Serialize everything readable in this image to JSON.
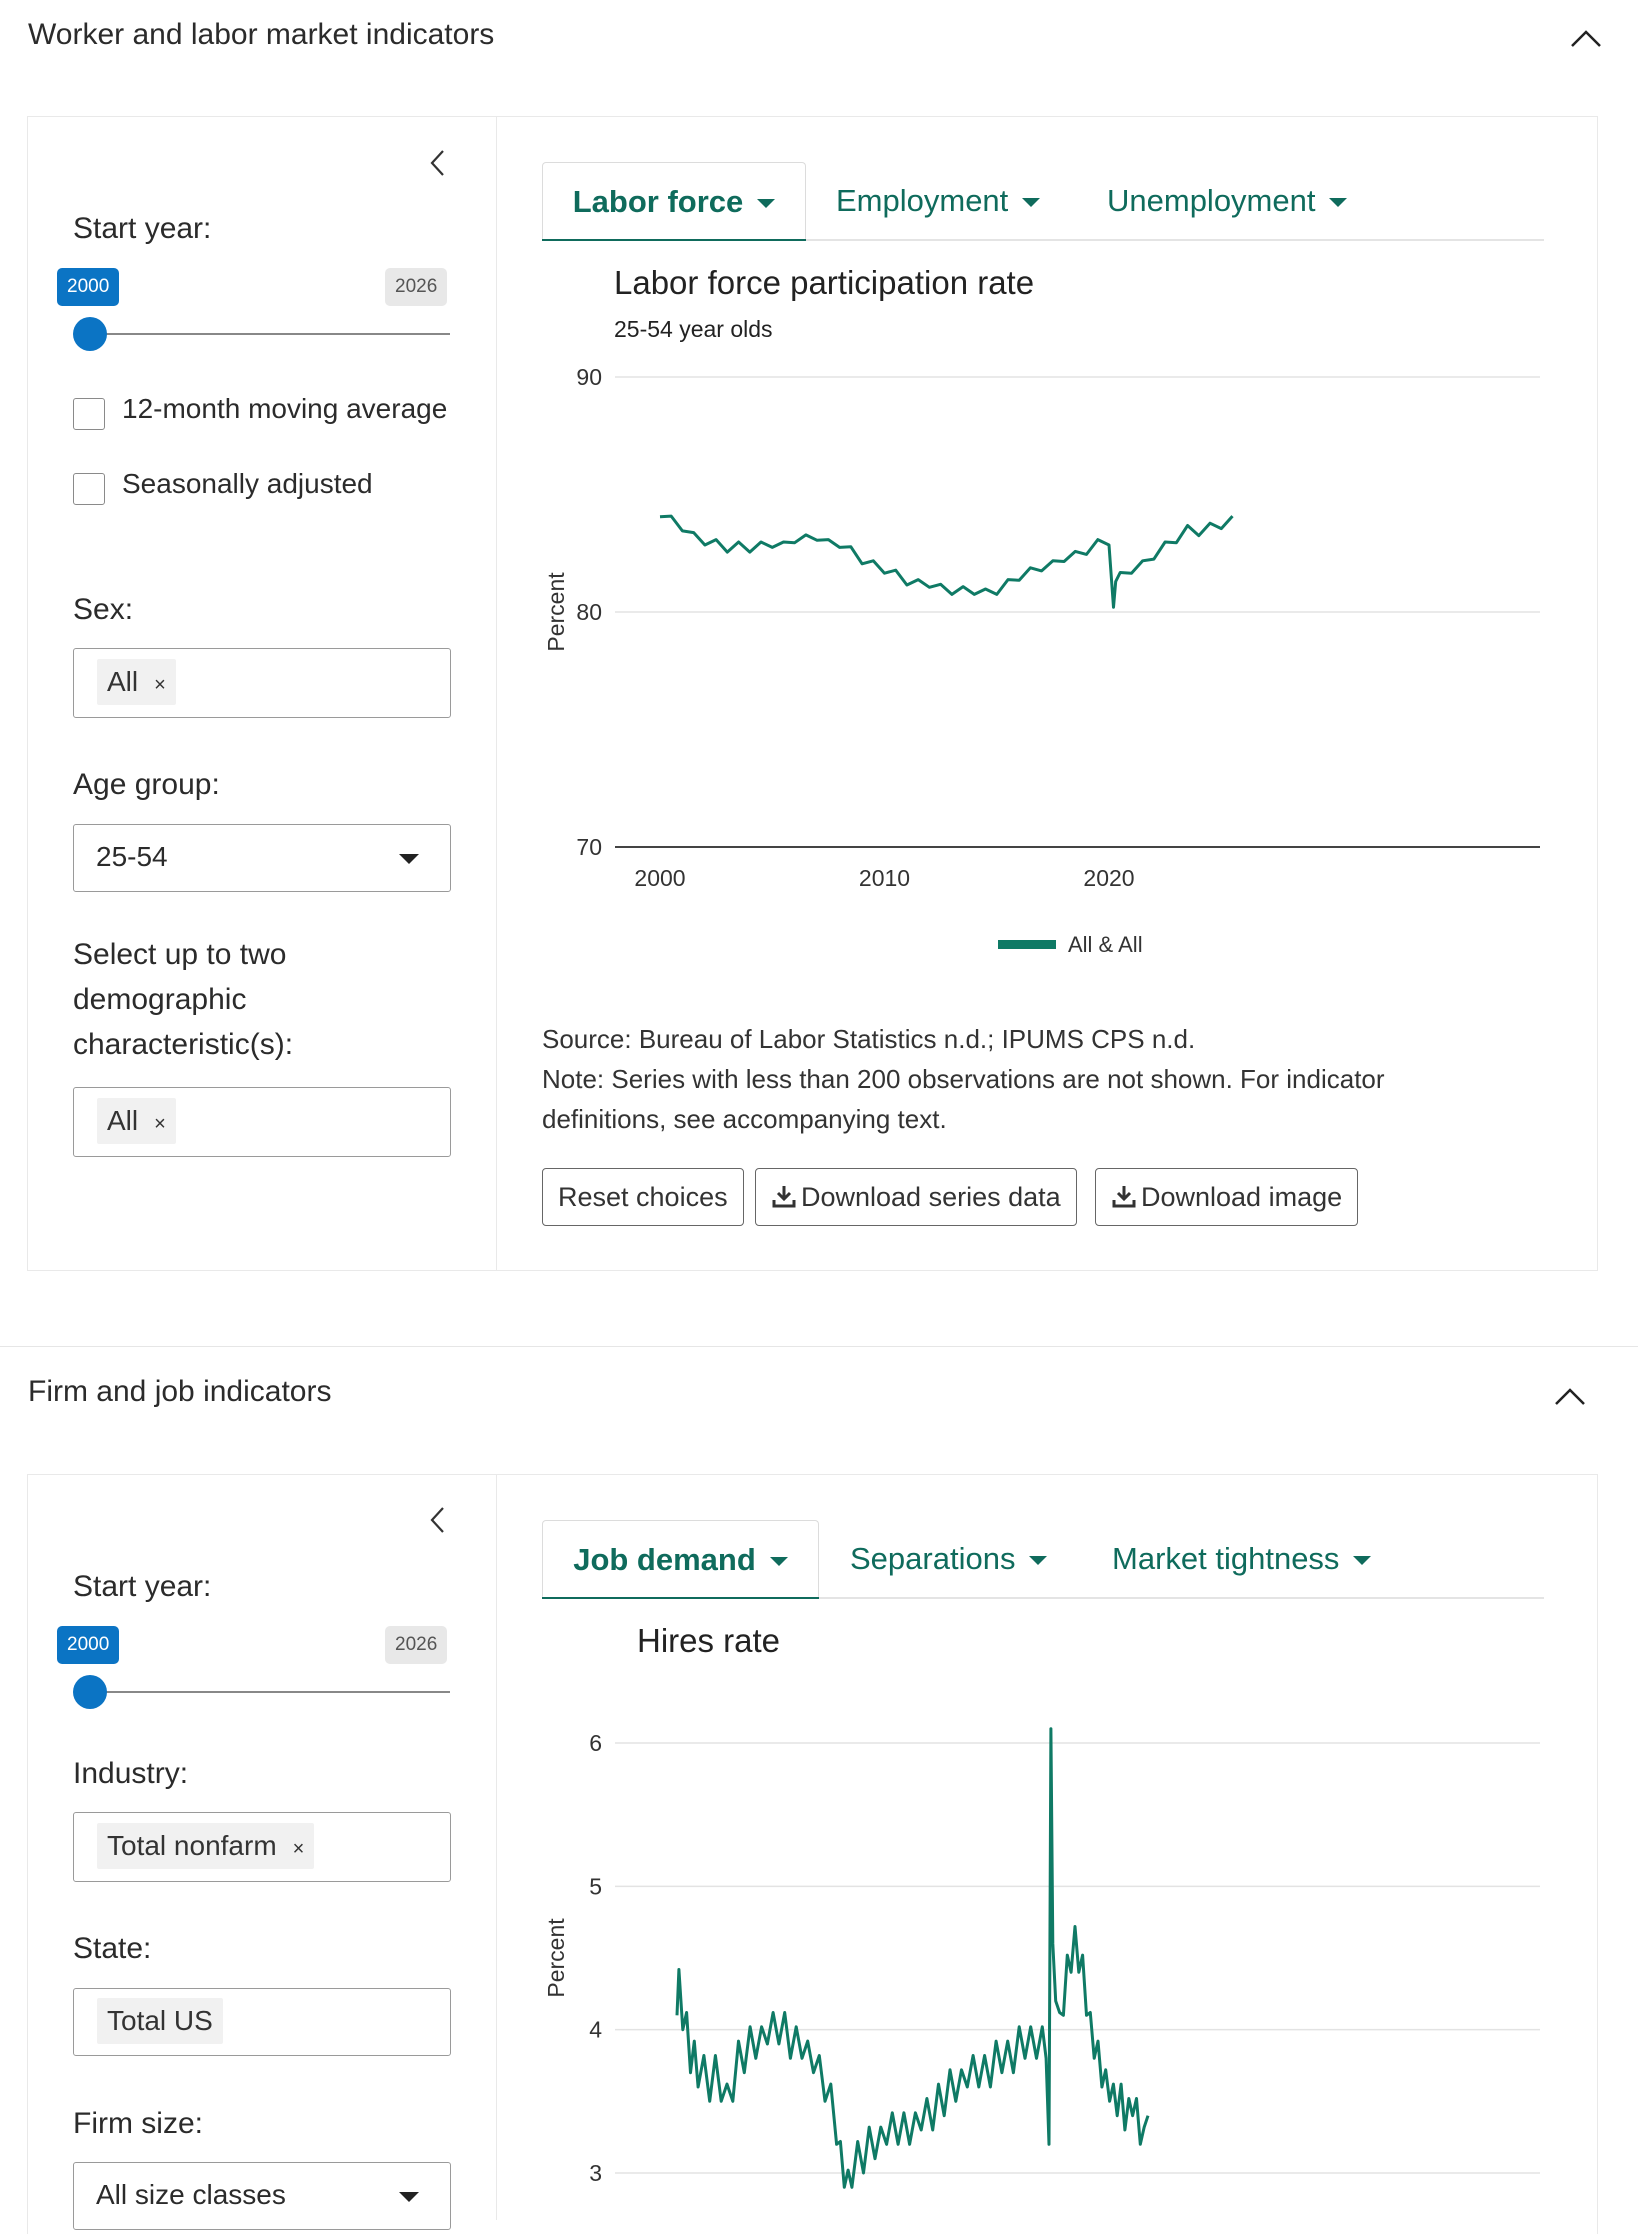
{
  "section1": {
    "title": "Worker and labor market indicators",
    "sidebar": {
      "start_year_label": "Start year:",
      "start_year_value": "2000",
      "end_year_value": "2026",
      "moving_avg_label": "12-month moving average",
      "moving_avg_checked": false,
      "seasonal_label": "Seasonally adjusted",
      "seasonal_checked": false,
      "sex_label": "Sex:",
      "sex_chip": "All",
      "chip_remove": "×",
      "age_label": "Age group:",
      "age_value": "25-54",
      "demo_label_1": "Select up to two",
      "demo_label_2": "demographic",
      "demo_label_3": "characteristic(s):",
      "demo_chip": "All"
    },
    "tabs": [
      "Labor force",
      "Employment",
      "Unemployment"
    ],
    "active_tab": "Labor force",
    "chart": {
      "title": "Labor force participation rate",
      "subtitle": "25-54 year olds",
      "ylabel": "Percent",
      "yticks": [
        "90",
        "80",
        "70"
      ],
      "xticks": [
        "2000",
        "2010",
        "2020"
      ],
      "legend": "All & All"
    },
    "source": "Source: Bureau of Labor Statistics n.d.; IPUMS CPS n.d.",
    "note_line1": "Note: Series with less than 200 observations are not shown. For indicator",
    "note_line2": "definitions, see accompanying text.",
    "buttons": {
      "reset": "Reset choices",
      "download_data": "Download series data",
      "download_image": "Download image"
    }
  },
  "section2": {
    "title": "Firm and job indicators",
    "sidebar": {
      "start_year_label": "Start year:",
      "start_year_value": "2000",
      "end_year_value": "2026",
      "industry_label": "Industry:",
      "industry_chip": "Total nonfarm",
      "chip_remove": "×",
      "state_label": "State:",
      "state_chip": "Total US",
      "firm_size_label": "Firm size:",
      "firm_size_value": "All size classes"
    },
    "tabs": [
      "Job demand",
      "Separations",
      "Market tightness"
    ],
    "active_tab": "Job demand",
    "chart": {
      "title": "Hires rate",
      "ylabel": "Percent",
      "yticks": [
        "6",
        "5",
        "4",
        "3"
      ]
    }
  },
  "colors": {
    "accent": "#0b74c4",
    "series": "#0f7a65",
    "tab_text": "#0f6b5c"
  },
  "chart_data": [
    {
      "type": "line",
      "title": "Labor force participation rate",
      "subtitle": "25-54 year olds",
      "ylabel": "Percent",
      "ylim": [
        70,
        90
      ],
      "xlim": [
        2000,
        2025.5
      ],
      "grid": true,
      "legend_placement": "bottom",
      "series": [
        {
          "name": "All & All",
          "x": [
            2000.0,
            2000.5,
            2001.0,
            2001.5,
            2002.0,
            2002.5,
            2003.0,
            2003.5,
            2004.0,
            2004.5,
            2005.0,
            2005.5,
            2006.0,
            2006.5,
            2007.0,
            2007.5,
            2008.0,
            2008.5,
            2009.0,
            2009.5,
            2010.0,
            2010.5,
            2011.0,
            2011.5,
            2012.0,
            2012.5,
            2013.0,
            2013.5,
            2014.0,
            2014.5,
            2015.0,
            2015.5,
            2016.0,
            2016.5,
            2017.0,
            2017.5,
            2018.0,
            2018.5,
            2019.0,
            2019.5,
            2020.0,
            2020.2,
            2020.3,
            2020.5,
            2021.0,
            2021.5,
            2022.0,
            2022.5,
            2023.0,
            2023.5,
            2024.0,
            2024.5,
            2025.0,
            2025.5
          ],
          "y": [
            84.2,
            83.9,
            83.6,
            83.2,
            83.0,
            82.9,
            82.7,
            82.8,
            82.7,
            82.8,
            82.9,
            82.8,
            83.1,
            83.1,
            83.2,
            82.9,
            82.9,
            82.6,
            82.2,
            82.0,
            81.8,
            81.6,
            81.3,
            81.2,
            81.2,
            81.0,
            80.9,
            80.9,
            80.9,
            80.8,
            80.9,
            81.2,
            81.5,
            81.7,
            81.9,
            82.0,
            82.3,
            82.4,
            82.6,
            82.9,
            83.0,
            80.2,
            81.3,
            81.5,
            81.8,
            82.0,
            82.4,
            82.8,
            83.1,
            83.5,
            83.4,
            83.6,
            83.7,
            83.9
          ]
        }
      ]
    },
    {
      "type": "line",
      "title": "Hires rate",
      "ylabel": "Percent",
      "ylim": [
        2.8,
        6.2
      ],
      "xlim": [
        2000.9,
        2025.5
      ],
      "grid": true,
      "series": [
        {
          "x": [
            2000.9,
            2001.0,
            2001.2,
            2001.4,
            2001.6,
            2001.8,
            2002.0,
            2002.3,
            2002.6,
            2002.9,
            2003.2,
            2003.5,
            2003.8,
            2004.1,
            2004.4,
            2004.7,
            2005.0,
            2005.3,
            2005.6,
            2005.9,
            2006.2,
            2006.5,
            2006.8,
            2007.1,
            2007.4,
            2007.7,
            2008.0,
            2008.3,
            2008.6,
            2008.9,
            2009.2,
            2009.4,
            2009.6,
            2009.8,
            2010.0,
            2010.3,
            2010.6,
            2010.9,
            2011.2,
            2011.5,
            2011.8,
            2012.1,
            2012.4,
            2012.7,
            2013.0,
            2013.3,
            2013.6,
            2013.9,
            2014.2,
            2014.5,
            2014.8,
            2015.1,
            2015.4,
            2015.7,
            2016.0,
            2016.3,
            2016.6,
            2016.9,
            2017.2,
            2017.5,
            2017.8,
            2018.1,
            2018.4,
            2018.7,
            2019.0,
            2019.3,
            2019.6,
            2019.9,
            2020.1,
            2020.25,
            2020.35,
            2020.45,
            2020.6,
            2020.8,
            2021.0,
            2021.2,
            2021.4,
            2021.6,
            2021.8,
            2022.0,
            2022.2,
            2022.4,
            2022.6,
            2022.8,
            2023.0,
            2023.2,
            2023.4,
            2023.6,
            2023.8,
            2024.0,
            2024.2,
            2024.4,
            2024.6,
            2024.8,
            2025.0,
            2025.2,
            2025.4
          ],
          "y": [
            4.2,
            4.3,
            4.1,
            4.0,
            3.8,
            3.8,
            3.7,
            3.7,
            3.6,
            3.7,
            3.6,
            3.5,
            3.6,
            3.8,
            3.8,
            3.9,
            3.9,
            3.9,
            4.0,
            4.0,
            4.0,
            4.0,
            3.9,
            3.9,
            3.9,
            3.8,
            3.8,
            3.7,
            3.6,
            3.5,
            3.3,
            3.1,
            3.0,
            2.9,
            3.0,
            3.1,
            3.1,
            3.2,
            3.2,
            3.2,
            3.3,
            3.3,
            3.3,
            3.3,
            3.3,
            3.3,
            3.4,
            3.4,
            3.4,
            3.5,
            3.5,
            3.6,
            3.6,
            3.6,
            3.7,
            3.7,
            3.7,
            3.7,
            3.7,
            3.8,
            3.8,
            3.8,
            3.8,
            3.9,
            3.9,
            3.9,
            3.9,
            3.9,
            3.9,
            3.2,
            6.1,
            4.6,
            4.3,
            4.0,
            4.2,
            4.4,
            4.5,
            4.6,
            4.5,
            4.4,
            4.2,
            4.0,
            3.9,
            3.8,
            3.7,
            3.6,
            3.6,
            3.5,
            3.5,
            3.5,
            3.4,
            3.4,
            3.5,
            3.4,
            3.3,
            3.2,
            3.5
          ]
        }
      ]
    }
  ]
}
